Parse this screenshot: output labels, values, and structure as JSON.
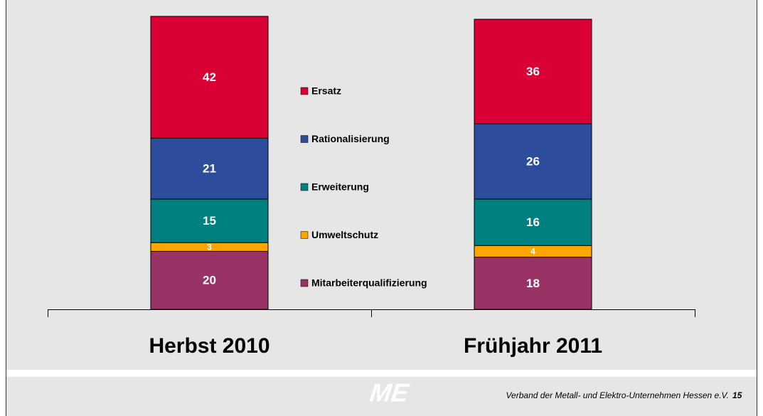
{
  "chart_data": {
    "type": "stacked_bar",
    "categories": [
      "Herbst 2010",
      "Frühjahr 2011"
    ],
    "series": [
      {
        "name": "Ersatz",
        "color": "#d90036",
        "values": [
          42,
          36
        ]
      },
      {
        "name": "Rationalisierung",
        "color": "#2e4c9c",
        "values": [
          21,
          26
        ]
      },
      {
        "name": "Erweiterung",
        "color": "#008080",
        "values": [
          15,
          16
        ]
      },
      {
        "name": "Umweltschutz",
        "color": "#ffa500",
        "values": [
          3,
          4
        ]
      },
      {
        "name": "Mitarbeiterqualifizierung",
        "color": "#993366",
        "values": [
          20,
          18
        ]
      }
    ],
    "ylim": [
      0,
      101
    ]
  },
  "footer": {
    "logo": "ME",
    "text": "Verband der Metall- und Elektro-Unternehmen Hessen e.V.",
    "page": "15"
  }
}
